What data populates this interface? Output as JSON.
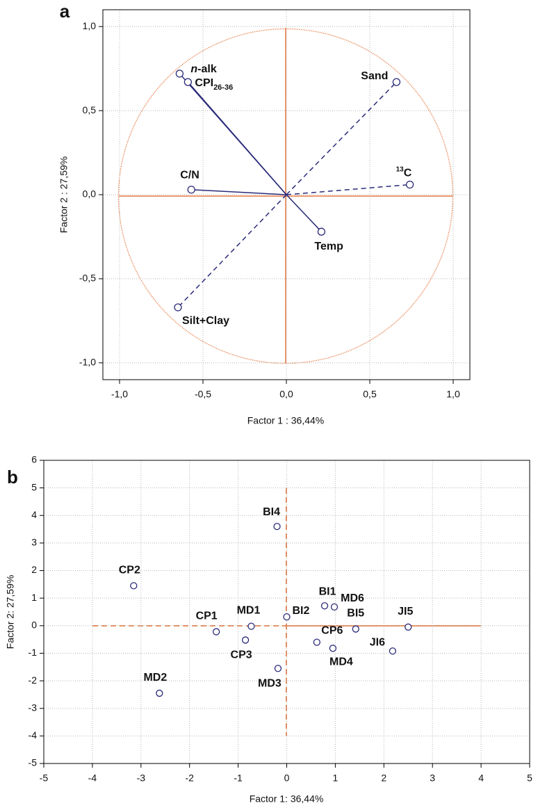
{
  "chart_data": [
    {
      "type": "vector",
      "panel_label": "a",
      "x_label": "Factor 1 : 36,44%",
      "y_label": "Factor 2 : 27,59%",
      "xlim": [
        -1.1,
        1.1
      ],
      "ylim": [
        -1.1,
        1.1
      ],
      "xticks": [
        {
          "value": -1,
          "label": "-1,0"
        },
        {
          "value": -0.5,
          "label": "-0,5"
        },
        {
          "value": 0,
          "label": "0,0"
        },
        {
          "value": 0.5,
          "label": "0,5"
        },
        {
          "value": 1,
          "label": "1,0"
        }
      ],
      "yticks": [
        {
          "value": -1,
          "label": "-1,0"
        },
        {
          "value": -0.5,
          "label": "-0,5"
        },
        {
          "value": 0,
          "label": "0,0"
        },
        {
          "value": 0.5,
          "label": "0,5"
        },
        {
          "value": 1,
          "label": "1,0"
        }
      ],
      "grid": true,
      "color": "#2a2a7a",
      "ref_color": "#e0601e",
      "points": [
        {
          "label": [
            {
              "text": "n",
              "style": "italic"
            },
            {
              "text": "-alk"
            }
          ],
          "x": -0.64,
          "y": 0.72,
          "line": "solid"
        },
        {
          "label": [
            {
              "text": "CPI"
            },
            {
              "text": "26-36",
              "style": "sub"
            }
          ],
          "x": -0.59,
          "y": 0.67,
          "line": "solid"
        },
        {
          "label": [
            {
              "text": "Sand"
            }
          ],
          "x": 0.66,
          "y": 0.67,
          "line": "dashed"
        },
        {
          "label": [
            {
              "text": "13",
              "style": "sup"
            },
            {
              "text": "C"
            }
          ],
          "x": 0.74,
          "y": 0.06,
          "line": "dashed"
        },
        {
          "label": [
            {
              "text": "C/N"
            }
          ],
          "x": -0.57,
          "y": 0.03,
          "line": "solid"
        },
        {
          "label": [
            {
              "text": "Temp"
            }
          ],
          "x": 0.21,
          "y": -0.22,
          "line": "solid"
        },
        {
          "label": [
            {
              "text": "Silt+Clay"
            }
          ],
          "x": -0.65,
          "y": -0.67,
          "line": "dashed"
        }
      ]
    },
    {
      "type": "scatter",
      "panel_label": "b",
      "x_label": "Factor 1: 36,44%",
      "y_label": "Factor 2: 27,59%",
      "xlim": [
        -5,
        5
      ],
      "ylim": [
        -5,
        6
      ],
      "xticks": [
        -5,
        -4,
        -3,
        -2,
        -1,
        0,
        1,
        2,
        3,
        4,
        5
      ],
      "yticks": [
        -5,
        -4,
        -3,
        -2,
        -1,
        0,
        1,
        2,
        3,
        4,
        5,
        6
      ],
      "grid": true,
      "color": "#2a2a7a",
      "ref_color": "#e0601e",
      "points": [
        {
          "label": [
            {
              "text": "BI4"
            }
          ],
          "x": -0.2,
          "y": 3.6
        },
        {
          "label": [
            {
              "text": "CP2"
            }
          ],
          "x": -3.15,
          "y": 1.45
        },
        {
          "label": [
            {
              "text": "BI1"
            }
          ],
          "x": 0.78,
          "y": 0.72
        },
        {
          "label": [
            {
              "text": "MD6"
            }
          ],
          "x": 0.98,
          "y": 0.68
        },
        {
          "label": [
            {
              "text": "BI2"
            }
          ],
          "x": 0.0,
          "y": 0.32
        },
        {
          "label": [
            {
              "text": "BI5"
            }
          ],
          "x": 1.42,
          "y": -0.12
        },
        {
          "label": [
            {
              "text": "JI5"
            }
          ],
          "x": 2.5,
          "y": -0.05
        },
        {
          "label": [
            {
              "text": "JI6"
            }
          ],
          "x": 2.18,
          "y": -0.92
        },
        {
          "label": [
            {
              "text": "CP1"
            }
          ],
          "x": -1.45,
          "y": -0.22
        },
        {
          "label": [
            {
              "text": "MD1"
            }
          ],
          "x": -0.73,
          "y": -0.02
        },
        {
          "label": [
            {
              "text": "CP3"
            }
          ],
          "x": -0.85,
          "y": -0.52
        },
        {
          "label": [
            {
              "text": "CP6"
            }
          ],
          "x": 0.62,
          "y": -0.6
        },
        {
          "label": [
            {
              "text": "MD4"
            }
          ],
          "x": 0.95,
          "y": -0.82
        },
        {
          "label": [
            {
              "text": "MD3"
            }
          ],
          "x": -0.18,
          "y": -1.55
        },
        {
          "label": [
            {
              "text": "MD2"
            }
          ],
          "x": -2.62,
          "y": -2.45
        }
      ]
    }
  ]
}
